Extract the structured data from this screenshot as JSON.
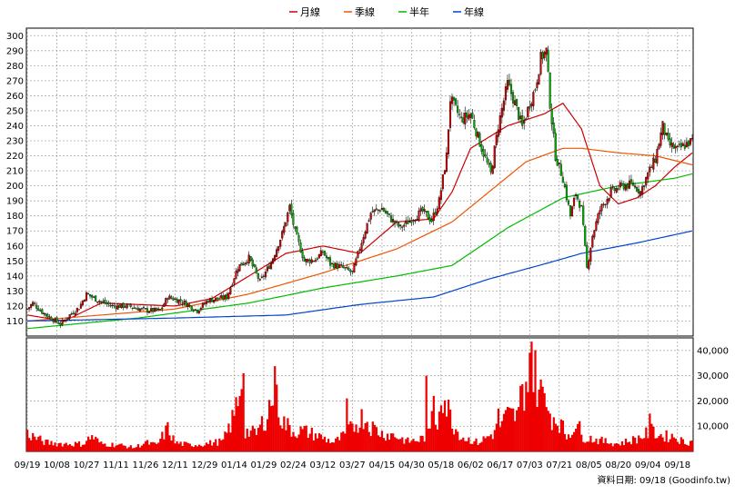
{
  "chart_data": [
    {
      "type": "candlestick",
      "title": "",
      "legend_placement": "top-center",
      "legend": [
        {
          "name": "月線",
          "color": "#cc0000"
        },
        {
          "name": "季線",
          "color": "#ee5500"
        },
        {
          "name": "半年",
          "color": "#00bb00"
        },
        {
          "name": "年線",
          "color": "#0044cc"
        }
      ],
      "up_color": "#cc0000",
      "down_color": "#00aa00",
      "grid": true,
      "ylim": [
        100,
        305
      ],
      "yticks": [
        110,
        120,
        130,
        140,
        150,
        160,
        170,
        180,
        190,
        200,
        210,
        220,
        230,
        240,
        250,
        260,
        270,
        280,
        290,
        300
      ],
      "price_keypoints": [
        [
          0,
          118
        ],
        [
          3,
          122
        ],
        [
          8,
          116
        ],
        [
          14,
          111
        ],
        [
          18,
          108
        ],
        [
          22,
          113
        ],
        [
          28,
          119
        ],
        [
          32,
          128
        ],
        [
          38,
          124
        ],
        [
          46,
          120
        ],
        [
          55,
          120
        ],
        [
          64,
          117
        ],
        [
          72,
          117
        ],
        [
          76,
          126
        ],
        [
          84,
          123
        ],
        [
          92,
          117
        ],
        [
          98,
          124
        ],
        [
          104,
          125
        ],
        [
          108,
          126
        ],
        [
          114,
          146
        ],
        [
          120,
          152
        ],
        [
          126,
          136
        ],
        [
          132,
          149
        ],
        [
          138,
          168
        ],
        [
          142,
          186
        ],
        [
          145,
          169
        ],
        [
          150,
          150
        ],
        [
          156,
          151
        ],
        [
          160,
          156
        ],
        [
          164,
          148
        ],
        [
          170,
          146
        ],
        [
          176,
          142
        ],
        [
          182,
          167
        ],
        [
          186,
          182
        ],
        [
          192,
          185
        ],
        [
          196,
          179
        ],
        [
          202,
          172
        ],
        [
          208,
          178
        ],
        [
          214,
          183
        ],
        [
          219,
          177
        ],
        [
          223,
          190
        ],
        [
          227,
          220
        ],
        [
          229,
          258
        ],
        [
          235,
          244
        ],
        [
          240,
          248
        ],
        [
          246,
          225
        ],
        [
          251,
          208
        ],
        [
          255,
          240
        ],
        [
          260,
          268
        ],
        [
          264,
          255
        ],
        [
          268,
          239
        ],
        [
          272,
          255
        ],
        [
          275,
          265
        ],
        [
          278,
          285
        ],
        [
          281,
          290
        ],
        [
          283,
          255
        ],
        [
          286,
          220
        ],
        [
          290,
          205
        ],
        [
          294,
          180
        ],
        [
          297,
          195
        ],
        [
          300,
          185
        ],
        [
          303,
          145
        ],
        [
          306,
          167
        ],
        [
          310,
          184
        ],
        [
          316,
          196
        ],
        [
          322,
          200
        ],
        [
          328,
          201
        ],
        [
          332,
          196
        ],
        [
          336,
          208
        ],
        [
          340,
          218
        ],
        [
          344,
          240
        ],
        [
          347,
          228
        ],
        [
          352,
          224
        ],
        [
          357,
          228
        ],
        [
          360,
          230
        ]
      ],
      "moving_averages": [
        {
          "name": "月線",
          "values": [
            [
              0,
              114
            ],
            [
              20,
              110
            ],
            [
              40,
              122
            ],
            [
              60,
              121
            ],
            [
              80,
              120
            ],
            [
              100,
              125
            ],
            [
              120,
              140
            ],
            [
              140,
              155
            ],
            [
              160,
              160
            ],
            [
              180,
              155
            ],
            [
              200,
              176
            ],
            [
              220,
              178
            ],
            [
              230,
              196
            ],
            [
              240,
              225
            ],
            [
              260,
              240
            ],
            [
              270,
              244
            ],
            [
              280,
              248
            ],
            [
              290,
              255
            ],
            [
              300,
              238
            ],
            [
              310,
              200
            ],
            [
              320,
              188
            ],
            [
              330,
              192
            ],
            [
              340,
              200
            ],
            [
              350,
              212
            ],
            [
              360,
              222
            ]
          ]
        },
        {
          "name": "季線",
          "values": [
            [
              0,
              110
            ],
            [
              40,
              114
            ],
            [
              80,
              118
            ],
            [
              120,
              128
            ],
            [
              160,
              142
            ],
            [
              200,
              158
            ],
            [
              230,
              176
            ],
            [
              250,
              196
            ],
            [
              270,
              216
            ],
            [
              290,
              225
            ],
            [
              300,
              225
            ],
            [
              320,
              222
            ],
            [
              340,
              220
            ],
            [
              360,
              214
            ]
          ]
        },
        {
          "name": "半年",
          "values": [
            [
              0,
              105
            ],
            [
              60,
              112
            ],
            [
              120,
              122
            ],
            [
              160,
              132
            ],
            [
              200,
              140
            ],
            [
              230,
              147
            ],
            [
              260,
              172
            ],
            [
              290,
              192
            ],
            [
              320,
              200
            ],
            [
              350,
              205
            ],
            [
              360,
              208
            ]
          ]
        },
        {
          "name": "年線",
          "values": [
            [
              0,
              110
            ],
            [
              80,
              112
            ],
            [
              140,
              114
            ],
            [
              180,
              121
            ],
            [
              220,
              126
            ],
            [
              250,
              138
            ],
            [
              280,
              148
            ],
            [
              300,
              155
            ],
            [
              330,
              162
            ],
            [
              360,
              170
            ]
          ]
        }
      ]
    },
    {
      "type": "bar",
      "title": "",
      "ylim": [
        0,
        45000
      ],
      "yticks": [
        "10,000",
        "20,000",
        "30,000",
        "40,000"
      ],
      "ytick_values": [
        10000,
        20000,
        30000,
        40000
      ],
      "bar_color": "#ee0000",
      "volume_keypoints": [
        [
          0,
          7000
        ],
        [
          10,
          3500
        ],
        [
          20,
          3000
        ],
        [
          30,
          3000
        ],
        [
          35,
          6000
        ],
        [
          40,
          3000
        ],
        [
          50,
          2500
        ],
        [
          58,
          1500
        ],
        [
          64,
          3500
        ],
        [
          70,
          2500
        ],
        [
          76,
          9000
        ],
        [
          80,
          3500
        ],
        [
          88,
          2500
        ],
        [
          96,
          3000
        ],
        [
          106,
          4000
        ],
        [
          112,
          14000
        ],
        [
          116,
          29000
        ],
        [
          118,
          8000
        ],
        [
          124,
          7000
        ],
        [
          130,
          15000
        ],
        [
          134,
          25000
        ],
        [
          138,
          12000
        ],
        [
          144,
          8000
        ],
        [
          150,
          8000
        ],
        [
          158,
          6000
        ],
        [
          166,
          3500
        ],
        [
          172,
          6500
        ],
        [
          178,
          11000
        ],
        [
          182,
          14000
        ],
        [
          186,
          10000
        ],
        [
          192,
          7000
        ],
        [
          198,
          6500
        ],
        [
          206,
          4000
        ],
        [
          212,
          4500
        ],
        [
          218,
          7000
        ],
        [
          222,
          11000
        ],
        [
          224,
          26000
        ],
        [
          228,
          16000
        ],
        [
          232,
          9000
        ],
        [
          236,
          5500
        ],
        [
          244,
          3500
        ],
        [
          252,
          7000
        ],
        [
          260,
          14000
        ],
        [
          266,
          14000
        ],
        [
          272,
          38000
        ],
        [
          278,
          22000
        ],
        [
          284,
          14000
        ],
        [
          288,
          12000
        ],
        [
          292,
          6000
        ],
        [
          296,
          10000
        ],
        [
          300,
          6000
        ],
        [
          306,
          5000
        ],
        [
          312,
          4000
        ],
        [
          320,
          3000
        ],
        [
          330,
          5000
        ],
        [
          338,
          8000
        ],
        [
          344,
          6000
        ],
        [
          350,
          6000
        ],
        [
          356,
          3500
        ],
        [
          360,
          4000
        ]
      ],
      "volume_spikes": [
        [
          117,
          31000
        ],
        [
          135,
          26500
        ],
        [
          173,
          21000
        ],
        [
          216,
          30000
        ],
        [
          219,
          16000
        ],
        [
          220,
          22000
        ],
        [
          255,
          17000
        ],
        [
          267,
          26000
        ],
        [
          271,
          23500
        ],
        [
          273,
          43500
        ],
        [
          278,
          28500
        ],
        [
          283,
          15000
        ],
        [
          299,
          12000
        ],
        [
          337,
          15000
        ]
      ]
    }
  ],
  "x_axis": {
    "labels": [
      "09/19",
      "10/08",
      "10/27",
      "11/11",
      "11/26",
      "12/11",
      "12/29",
      "01/14",
      "01/29",
      "02/24",
      "03/12",
      "03/27",
      "04/15",
      "04/30",
      "05/18",
      "06/02",
      "06/17",
      "07/03",
      "07/21",
      "08/05",
      "08/20",
      "09/04",
      "09/18"
    ],
    "label_index": [
      0,
      16,
      32,
      48,
      64,
      80,
      96,
      112,
      128,
      144,
      160,
      176,
      192,
      208,
      224,
      240,
      256,
      272,
      288,
      304,
      320,
      336,
      352
    ]
  },
  "footer": {
    "source": "資料日期: 09/18 (Goodinfo.tw)"
  }
}
